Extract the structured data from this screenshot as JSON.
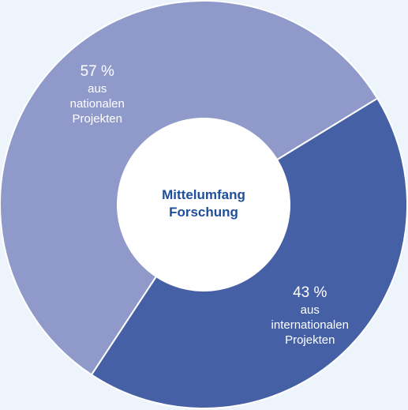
{
  "chart_data": {
    "type": "pie",
    "hole": true,
    "center_label": "Mittelumfang Forschung",
    "categories": [
      "aus nationalen Projekten",
      "aus internationalen Projekten"
    ],
    "values": [
      57,
      43
    ],
    "value_labels": [
      "57 %",
      "43 %"
    ],
    "colors": [
      "#8f9aca",
      "#4560a5"
    ]
  }
}
